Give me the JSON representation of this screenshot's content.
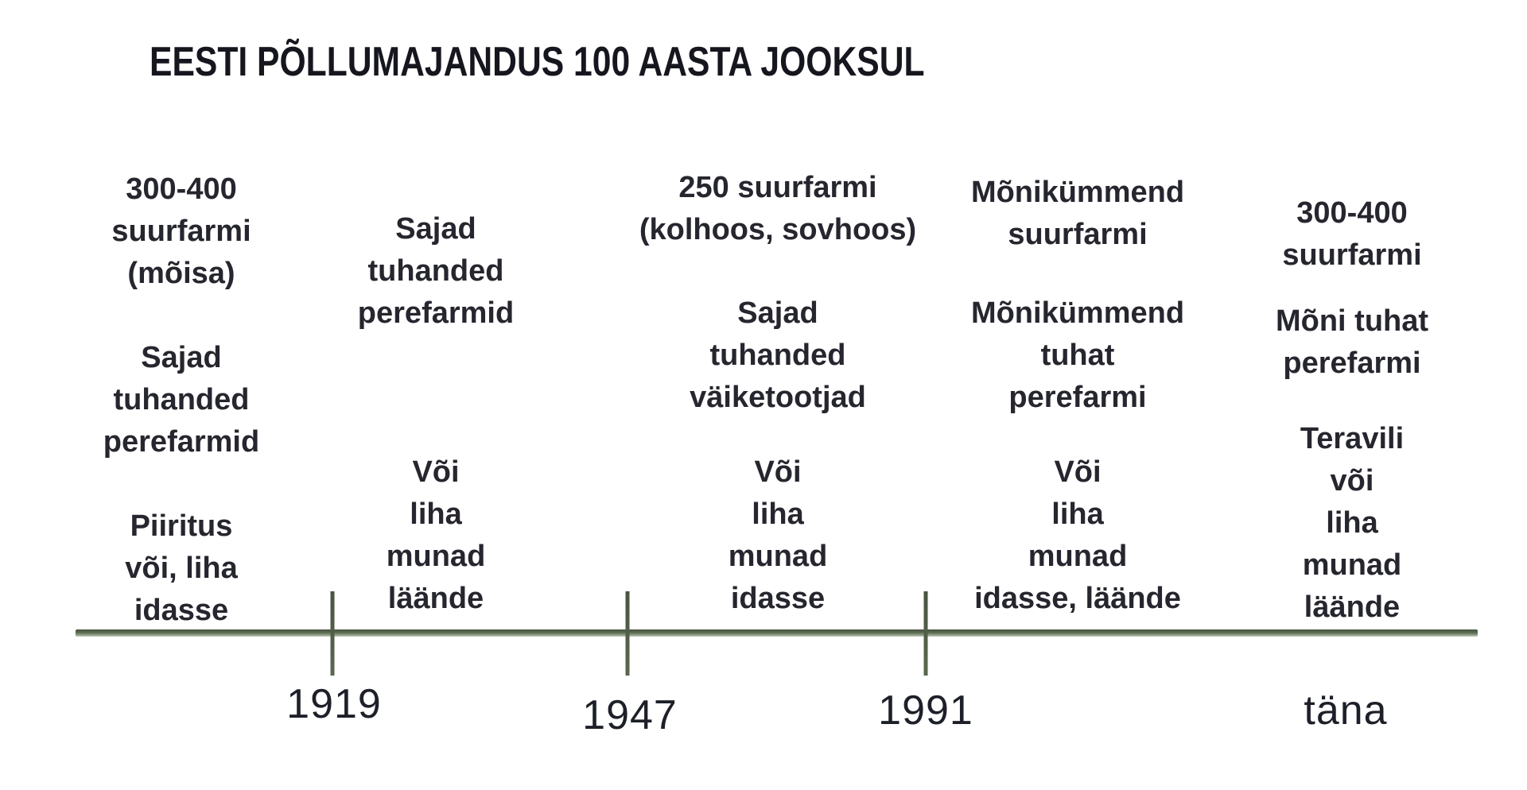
{
  "title": "EESTI PÕLLUMAJANDUS 100 AASTA JOOKSUL",
  "periods": [
    {
      "name": "enne-1919",
      "blocks": [
        {
          "text": "300-400\nsuurfarmi\n(mõisa)"
        },
        {
          "text": "Sajad\ntuhanded\nperefarmid"
        },
        {
          "text": "Piiritus\nvõi, liha\nidasse"
        }
      ]
    },
    {
      "name": "1919-1947",
      "blocks": [
        {
          "text": "Sajad\ntuhanded\nperefarmid"
        },
        {
          "text": "Või\nliha\nmunad\nläände"
        }
      ]
    },
    {
      "name": "1947-1991",
      "blocks": [
        {
          "text": "250 suurfarmi\n(kolhoos, sovhoos)"
        },
        {
          "text": "Sajad\ntuhanded\nväiketootjad"
        },
        {
          "text": "Või\nliha\nmunad\nidasse"
        }
      ]
    },
    {
      "name": "1991-tana",
      "blocks": [
        {
          "text": "Mõnikümmend\nsuurfarmi"
        },
        {
          "text": "Mõnikümmend\ntuhat\nperefarmi"
        },
        {
          "text": "Või\nliha\nmunad\nidasse, läände"
        }
      ]
    },
    {
      "name": "tana",
      "blocks": [
        {
          "text": "300-400\nsuurfarmi"
        },
        {
          "text": "Mõni tuhat\nperefarmi"
        },
        {
          "text": "Teravili\nvõi\nliha\nmunad\nläände"
        }
      ]
    }
  ],
  "timeline": {
    "line_color": "#5c6b52",
    "markers": [
      {
        "label": "1919",
        "has_tick": true
      },
      {
        "label": "1947",
        "has_tick": true
      },
      {
        "label": "1991",
        "has_tick": true
      },
      {
        "label": "täna",
        "has_tick": false
      }
    ]
  }
}
